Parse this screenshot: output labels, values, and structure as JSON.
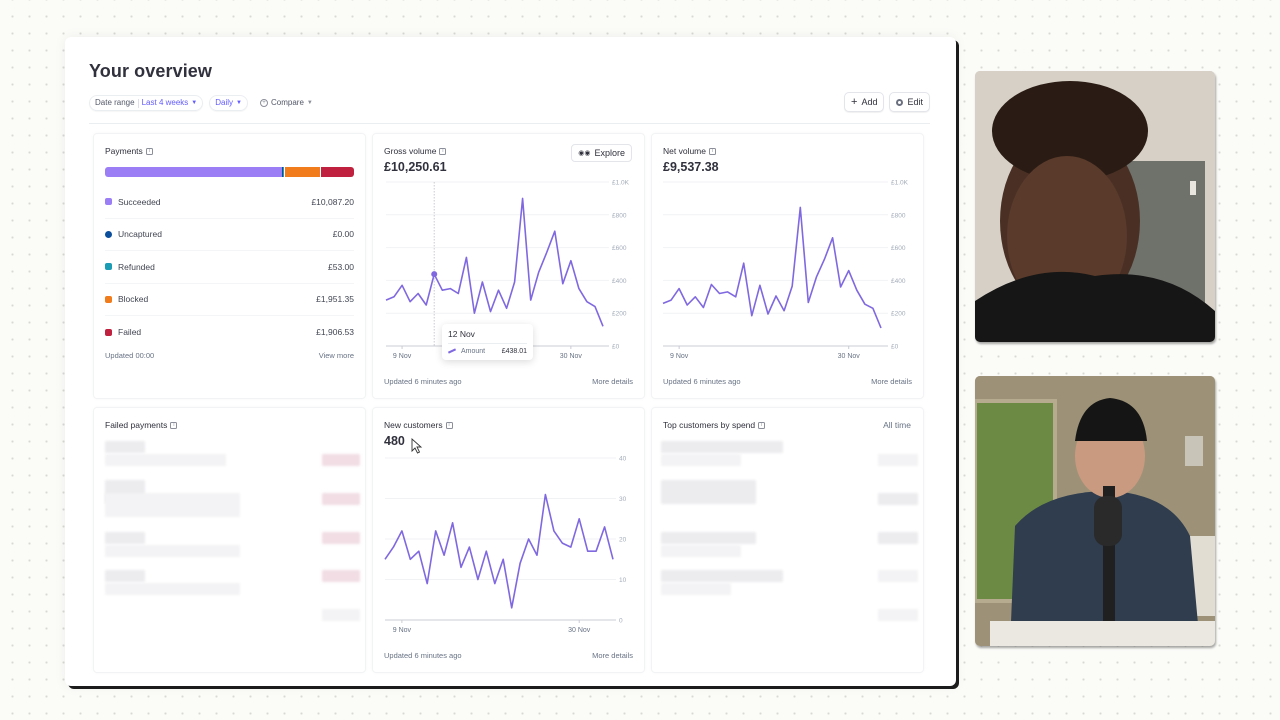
{
  "page": {
    "title": "Your overview",
    "filters": {
      "date_range_label": "Date range",
      "date_range_value": "Last 4 weeks",
      "interval_value": "Daily",
      "compare_label": "Compare"
    },
    "actions": {
      "add_label": "Add",
      "edit_label": "Edit"
    }
  },
  "colors": {
    "accent": "#635bff",
    "line": "#7f68e0",
    "succeeded": "#9b7ef5",
    "uncaptured": "#0b4f9c",
    "refunded": "#1a9cb5",
    "blocked": "#f07c1c",
    "failed": "#c0213e"
  },
  "payments": {
    "title": "Payments",
    "rows": [
      {
        "label": "Succeeded",
        "value": "£10,087.20",
        "color": "#9b7ef5"
      },
      {
        "label": "Uncaptured",
        "value": "£0.00",
        "color": "#0b4f9c"
      },
      {
        "label": "Refunded",
        "value": "£53.00",
        "color": "#1a9cb5"
      },
      {
        "label": "Blocked",
        "value": "£1,951.35",
        "color": "#f07c1c"
      },
      {
        "label": "Failed",
        "value": "£1,906.53",
        "color": "#c0213e"
      }
    ],
    "updated": "Updated 00:00",
    "view_more": "View more"
  },
  "gross_volume": {
    "title": "Gross volume",
    "value": "£10,250.61",
    "explore_label": "Explore",
    "updated": "Updated 6 minutes ago",
    "more_details": "More details",
    "tooltip": {
      "date": "12 Nov",
      "series": "Amount",
      "value": "£438.01"
    }
  },
  "net_volume": {
    "title": "Net volume",
    "value": "£9,537.38",
    "updated": "Updated 6 minutes ago",
    "more_details": "More details"
  },
  "failed_payments": {
    "title": "Failed payments"
  },
  "new_customers": {
    "title": "New customers",
    "value": "480",
    "updated": "Updated 6 minutes ago",
    "more_details": "More details"
  },
  "top_customers": {
    "title": "Top customers by spend",
    "range": "All time"
  },
  "chart_data": [
    {
      "type": "line",
      "title": "Gross volume",
      "x_ticks": [
        "9 Nov",
        "30 Nov"
      ],
      "y_ticks": [
        "£0",
        "£200",
        "£400",
        "£600",
        "£800",
        "£1.0K"
      ],
      "ylim": [
        0,
        1000
      ],
      "series": [
        {
          "name": "Amount",
          "values": [
            280,
            300,
            370,
            270,
            320,
            250,
            438,
            340,
            350,
            320,
            540,
            200,
            390,
            210,
            340,
            230,
            390,
            900,
            280,
            450,
            570,
            700,
            380,
            520,
            350,
            270,
            240,
            120
          ]
        }
      ],
      "highlight_index": 6
    },
    {
      "type": "line",
      "title": "Net volume",
      "x_ticks": [
        "9 Nov",
        "30 Nov"
      ],
      "y_ticks": [
        "£0",
        "£200",
        "£400",
        "£600",
        "£800",
        "£1.0K"
      ],
      "ylim": [
        0,
        1000
      ],
      "series": [
        {
          "name": "Amount",
          "values": [
            260,
            280,
            350,
            250,
            300,
            235,
            375,
            320,
            330,
            300,
            505,
            185,
            370,
            195,
            305,
            215,
            365,
            845,
            265,
            420,
            530,
            660,
            360,
            460,
            340,
            255,
            230,
            110
          ]
        }
      ]
    },
    {
      "type": "line",
      "title": "New customers",
      "x_ticks": [
        "9 Nov",
        "30 Nov"
      ],
      "y_ticks": [
        "0",
        "10",
        "20",
        "30",
        "40"
      ],
      "ylim": [
        0,
        40
      ],
      "series": [
        {
          "name": "Customers",
          "values": [
            15,
            18,
            22,
            15,
            17,
            9,
            22,
            16,
            24,
            13,
            18,
            10,
            17,
            9,
            15,
            3,
            14,
            20,
            16,
            31,
            22,
            19,
            18,
            25,
            17,
            17,
            23,
            15
          ]
        }
      ]
    }
  ]
}
